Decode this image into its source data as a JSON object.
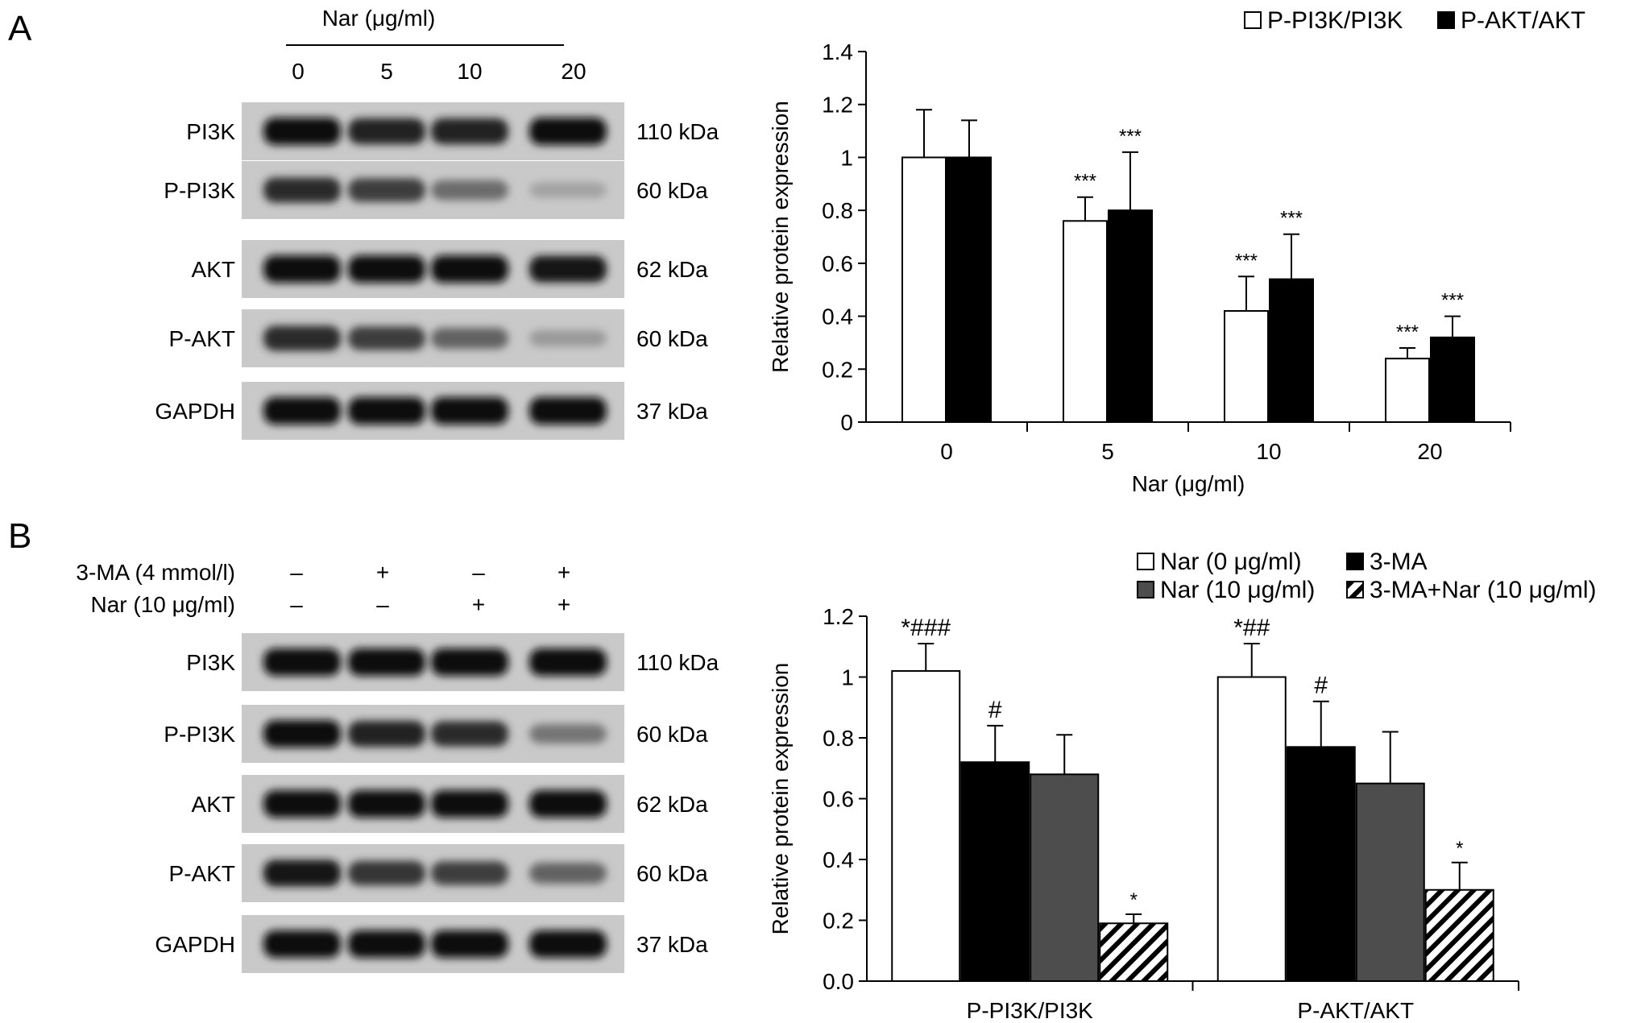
{
  "panelA": {
    "letter": "A",
    "blot": {
      "header": "Nar (μg/ml)",
      "lanes": [
        "0",
        "5",
        "10",
        "20"
      ],
      "rows": [
        {
          "label": "PI3K",
          "kda": "110 kDa",
          "intensity": [
            1.0,
            0.9,
            0.9,
            1.0
          ]
        },
        {
          "label": "P-PI3K",
          "kda": "60 kDa",
          "intensity": [
            0.85,
            0.75,
            0.5,
            0.2
          ]
        },
        {
          "label": "AKT",
          "kda": "62 kDa",
          "intensity": [
            1.0,
            1.0,
            1.0,
            0.95
          ]
        },
        {
          "label": "P-AKT",
          "kda": "60 kDa",
          "intensity": [
            0.85,
            0.75,
            0.55,
            0.25
          ]
        },
        {
          "label": "GAPDH",
          "kda": "37 kDa",
          "intensity": [
            1.0,
            1.0,
            1.0,
            1.0
          ]
        }
      ]
    }
  },
  "panelB": {
    "letter": "B",
    "blot": {
      "conditions": [
        {
          "label": "3-MA (4 mmol/l)",
          "marks": [
            "–",
            "+",
            "–",
            "+"
          ]
        },
        {
          "label": "Nar (10 μg/ml)",
          "marks": [
            "–",
            "–",
            "+",
            "+"
          ]
        }
      ],
      "rows": [
        {
          "label": "PI3K",
          "kda": "110 kDa",
          "intensity": [
            1.0,
            1.0,
            1.0,
            1.0
          ]
        },
        {
          "label": "P-PI3K",
          "kda": "60 kDa",
          "intensity": [
            1.0,
            0.9,
            0.85,
            0.45
          ]
        },
        {
          "label": "AKT",
          "kda": "62 kDa",
          "intensity": [
            1.0,
            1.0,
            1.0,
            1.0
          ]
        },
        {
          "label": "P-AKT",
          "kda": "60 kDa",
          "intensity": [
            0.95,
            0.8,
            0.75,
            0.55
          ]
        },
        {
          "label": "GAPDH",
          "kda": "37 kDa",
          "intensity": [
            1.0,
            1.0,
            1.0,
            1.0
          ]
        }
      ]
    }
  },
  "chart_data": [
    {
      "type": "bar",
      "title": "",
      "xlabel": "Nar (μg/ml)",
      "ylabel": "Relative protein expression",
      "ylim": [
        0,
        1.4
      ],
      "yticks": [
        "0",
        "0.2",
        "0.4",
        "0.6",
        "0.8",
        "1",
        "1.2",
        "1.4"
      ],
      "categories": [
        "0",
        "5",
        "10",
        "20"
      ],
      "legend_position": "top-right",
      "series": [
        {
          "name": "P-PI3K/PI3K",
          "fill": "#ffffff",
          "pattern": "none",
          "values": [
            1.0,
            0.76,
            0.42,
            0.24
          ],
          "errors": [
            0.18,
            0.09,
            0.13,
            0.04
          ],
          "annotations": [
            "",
            "***",
            "***",
            "***"
          ]
        },
        {
          "name": "P-AKT/AKT",
          "fill": "#000000",
          "pattern": "none",
          "values": [
            1.0,
            0.8,
            0.54,
            0.32
          ],
          "errors": [
            0.14,
            0.22,
            0.17,
            0.08
          ],
          "annotations": [
            "",
            "***",
            "***",
            "***"
          ]
        }
      ]
    },
    {
      "type": "bar",
      "title": "",
      "xlabel": "",
      "ylabel": "Relative protein expression",
      "ylim": [
        0,
        1.2
      ],
      "yticks": [
        "0.0",
        "0.2",
        "0.4",
        "0.6",
        "0.8",
        "1",
        "1.2"
      ],
      "categories": [
        "P-PI3K/PI3K",
        "P-AKT/AKT"
      ],
      "legend_position": "top",
      "series": [
        {
          "name": "Nar (0 μg/ml)",
          "fill": "#ffffff",
          "pattern": "none",
          "values": [
            1.02,
            1.0
          ],
          "errors": [
            0.09,
            0.11
          ],
          "annotations": [
            "*###",
            "*##"
          ]
        },
        {
          "name": "3-MA",
          "fill": "#000000",
          "pattern": "none",
          "values": [
            0.72,
            0.77
          ],
          "errors": [
            0.12,
            0.15
          ],
          "annotations": [
            "#",
            "#"
          ]
        },
        {
          "name": "Nar (10 μg/ml)",
          "fill": "#4d4d4d",
          "pattern": "none",
          "values": [
            0.68,
            0.65
          ],
          "errors": [
            0.13,
            0.17
          ],
          "annotations": [
            "",
            ""
          ]
        },
        {
          "name": "3-MA+Nar (10 μg/ml)",
          "fill": "#ffffff",
          "pattern": "hatch",
          "values": [
            0.19,
            0.3
          ],
          "errors": [
            0.03,
            0.09
          ],
          "annotations": [
            "*",
            "*"
          ]
        }
      ]
    }
  ]
}
